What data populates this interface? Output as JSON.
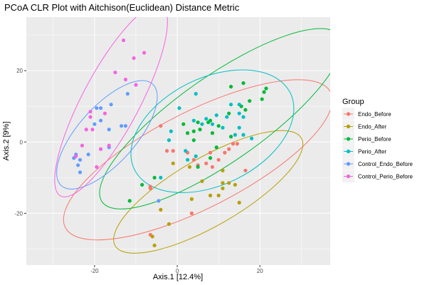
{
  "chart_data": {
    "type": "scatter",
    "title": "PCoA CLR Plot with Aitchison(Euclidean) Distance Metric",
    "xlabel": "Axis.1   [12.4%]",
    "ylabel": "Axis.2   [9%]",
    "xlim": [
      -36.5,
      37.0
    ],
    "ylim": [
      -34.5,
      35.0
    ],
    "xticks": [
      -20,
      0,
      20
    ],
    "yticks": [
      -20,
      0,
      20
    ],
    "xtick_labels": [
      "-20",
      "0",
      "20"
    ],
    "ytick_labels": [
      "-20",
      "0",
      "20"
    ],
    "grid": true,
    "legend_position": "right",
    "legend": {
      "title": "Group"
    },
    "series": [
      {
        "name": "Endo_Before",
        "color": "#F8766D",
        "points": [
          [
            -2.5,
            -2.5
          ],
          [
            -1.0,
            -2.5
          ],
          [
            2.5,
            -3.0
          ],
          [
            4.0,
            -5.0
          ],
          [
            5.0,
            -6.5
          ],
          [
            7.0,
            -6.0
          ],
          [
            8.0,
            -3.0
          ],
          [
            10.0,
            -5.0
          ],
          [
            11.5,
            -3.0
          ],
          [
            12.5,
            -2.0
          ],
          [
            13.5,
            -0.5
          ],
          [
            14.5,
            -0.5
          ],
          [
            16.5,
            -8.0
          ],
          [
            8.5,
            -7.0
          ],
          [
            -6.5,
            -12.5
          ],
          [
            -6.5,
            -13.0
          ],
          [
            3.5,
            -20.0
          ],
          [
            -6.5,
            -26.0
          ],
          [
            -4.0,
            4.5
          ]
        ],
        "ellipse": {
          "cx": 5.0,
          "cy": -5.0,
          "rx": 36.0,
          "ry": 13.5,
          "angle": -27
        }
      },
      {
        "name": "Endo_After",
        "color": "#B79F00",
        "points": [
          [
            -1.0,
            -6.0
          ],
          [
            3.0,
            -7.0
          ],
          [
            6.0,
            -11.0
          ],
          [
            8.0,
            -15.0
          ],
          [
            10.0,
            -15.0
          ],
          [
            11.0,
            -13.0
          ],
          [
            11.0,
            -11.5
          ],
          [
            12.5,
            -11.5
          ],
          [
            14.0,
            -12.0
          ],
          [
            11.0,
            -8.0
          ],
          [
            3.5,
            -16.0
          ],
          [
            -2.0,
            -23.0
          ],
          [
            -4.0,
            -19.0
          ],
          [
            -6.0,
            -26.5
          ],
          [
            -5.5,
            -29.0
          ],
          [
            15.0,
            -17.0
          ]
        ],
        "ellipse": {
          "cx": 7.5,
          "cy": -14.0,
          "rx": 26.0,
          "ry": 9.5,
          "angle": -30
        }
      },
      {
        "name": "Perio_Before",
        "color": "#00BA38",
        "points": [
          [
            -5.5,
            -10.0
          ],
          [
            -11.5,
            -16.5
          ],
          [
            -8.5,
            -12.0
          ],
          [
            1.5,
            5.0
          ],
          [
            2.5,
            2.5
          ],
          [
            4.0,
            0.5
          ],
          [
            4.0,
            3.0
          ],
          [
            5.0,
            5.5
          ],
          [
            5.5,
            3.5
          ],
          [
            5.0,
            -7.0
          ],
          [
            7.5,
            5.5
          ],
          [
            8.0,
            6.0
          ],
          [
            10.0,
            4.5
          ],
          [
            12.5,
            8.0
          ],
          [
            15.5,
            10.0
          ],
          [
            16.5,
            9.0
          ],
          [
            17.5,
            11.5
          ],
          [
            20.5,
            12.0
          ],
          [
            21.0,
            14.0
          ],
          [
            21.5,
            15.0
          ],
          [
            13.0,
            15.5
          ],
          [
            16.0,
            16.5
          ],
          [
            8.5,
            2.5
          ],
          [
            13.0,
            1.5
          ],
          [
            9.5,
            -1.5
          ],
          [
            8.0,
            -4.5
          ]
        ],
        "ellipse": {
          "cx": 10.5,
          "cy": 6.5,
          "rx": 35.0,
          "ry": 12.0,
          "angle": -35
        }
      },
      {
        "name": "Perio_After",
        "color": "#00BFC4",
        "points": [
          [
            0.5,
            9.5
          ],
          [
            -2.0,
            0.5
          ],
          [
            -4.0,
            -10.0
          ],
          [
            -1.5,
            3.0
          ],
          [
            2.0,
            -2.5
          ],
          [
            6.0,
            5.0
          ],
          [
            7.0,
            6.5
          ],
          [
            8.5,
            5.0
          ],
          [
            9.5,
            7.5
          ],
          [
            12.0,
            7.0
          ],
          [
            13.0,
            10.5
          ],
          [
            15.0,
            10.5
          ],
          [
            15.0,
            8.0
          ],
          [
            16.0,
            7.0
          ],
          [
            15.0,
            4.0
          ],
          [
            16.0,
            2.0
          ],
          [
            18.0,
            1.0
          ],
          [
            14.0,
            2.0
          ],
          [
            11.0,
            4.0
          ],
          [
            2.5,
            -5.0
          ],
          [
            4.5,
            -4.0
          ],
          [
            4.0,
            6.0
          ],
          [
            4.5,
            13.5
          ]
        ],
        "ellipse": {
          "cx": 8.5,
          "cy": 3.0,
          "rx": 21.0,
          "ry": 15.0,
          "angle": -26
        }
      },
      {
        "name": "Control_Endo_Before",
        "color": "#619CFF",
        "points": [
          [
            -25.0,
            -4.5
          ],
          [
            -24.5,
            -3.5
          ],
          [
            -24.0,
            -6.5
          ],
          [
            -23.5,
            -8.5
          ],
          [
            -23.5,
            -5.0
          ],
          [
            -21.5,
            -3.5
          ],
          [
            -20.0,
            5.0
          ],
          [
            -19.5,
            9.5
          ],
          [
            -18.5,
            9.5
          ],
          [
            -18.5,
            6.0
          ],
          [
            -16.5,
            3.5
          ],
          [
            -16.5,
            -1.5
          ],
          [
            -16.0,
            10.5
          ],
          [
            -13.5,
            4.5
          ],
          [
            -12.5,
            4.5
          ],
          [
            -12.0,
            13.5
          ],
          [
            -4.5,
            -16.5
          ]
        ],
        "ellipse": {
          "cx": -17.0,
          "cy": 2.0,
          "rx": 16.5,
          "ry": 8.0,
          "angle": -48
        }
      },
      {
        "name": "Control_Perio_Before",
        "color": "#F564E3",
        "points": [
          [
            -24.5,
            -4.0
          ],
          [
            -23.0,
            -1.0
          ],
          [
            -22.0,
            3.5
          ],
          [
            -21.0,
            8.5
          ],
          [
            -21.0,
            7.0
          ],
          [
            -20.5,
            3.5
          ],
          [
            -19.5,
            -7.0
          ],
          [
            -18.5,
            -2.0
          ],
          [
            -17.5,
            8.0
          ],
          [
            -16.5,
            -1.0
          ],
          [
            -15.0,
            19.5
          ],
          [
            -13.0,
            28.5
          ],
          [
            -12.5,
            17.5
          ],
          [
            -10.5,
            23.5
          ],
          [
            -10.0,
            16.0
          ],
          [
            -8.0,
            25.0
          ]
        ],
        "ellipse": {
          "cx": -16.0,
          "cy": 11.5,
          "rx": 26.0,
          "ry": 8.0,
          "angle": -62
        }
      }
    ]
  }
}
